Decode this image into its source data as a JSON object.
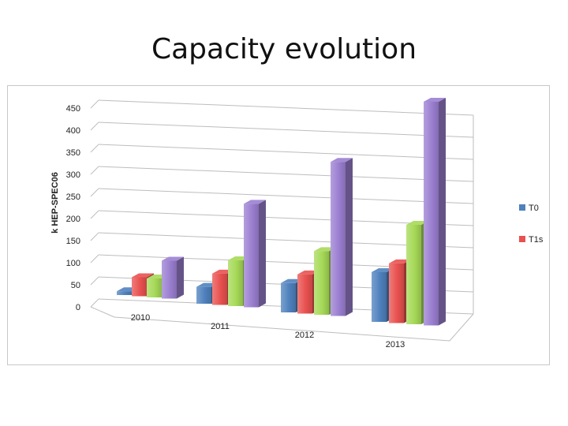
{
  "slide": {
    "title": "Capacity evolution"
  },
  "chart_data": {
    "type": "bar",
    "style": "3d-clustered-column",
    "title": "",
    "xlabel": "",
    "ylabel": "k HEP-SPEC06",
    "ylim": [
      0,
      450
    ],
    "yticks": [
      "0",
      "50",
      "100",
      "150",
      "200",
      "250",
      "300",
      "350",
      "400",
      "450"
    ],
    "grid": true,
    "categories": [
      "2010",
      "2011",
      "2012",
      "2013"
    ],
    "series": [
      {
        "name": "T0",
        "color": "#4f81bd",
        "values": [
          8,
          35,
          60,
          100
        ]
      },
      {
        "name": "T1s",
        "color": "#e8514f",
        "values": [
          40,
          65,
          80,
          120
        ]
      },
      {
        "name": "",
        "color": "#a6d957",
        "values": [
          40,
          95,
          130,
          200
        ]
      },
      {
        "name": "",
        "color": "#9b7fd1",
        "values": [
          80,
          215,
          315,
          450
        ]
      }
    ],
    "legend": {
      "position": "right",
      "entries": [
        "T0",
        "T1s"
      ]
    }
  }
}
